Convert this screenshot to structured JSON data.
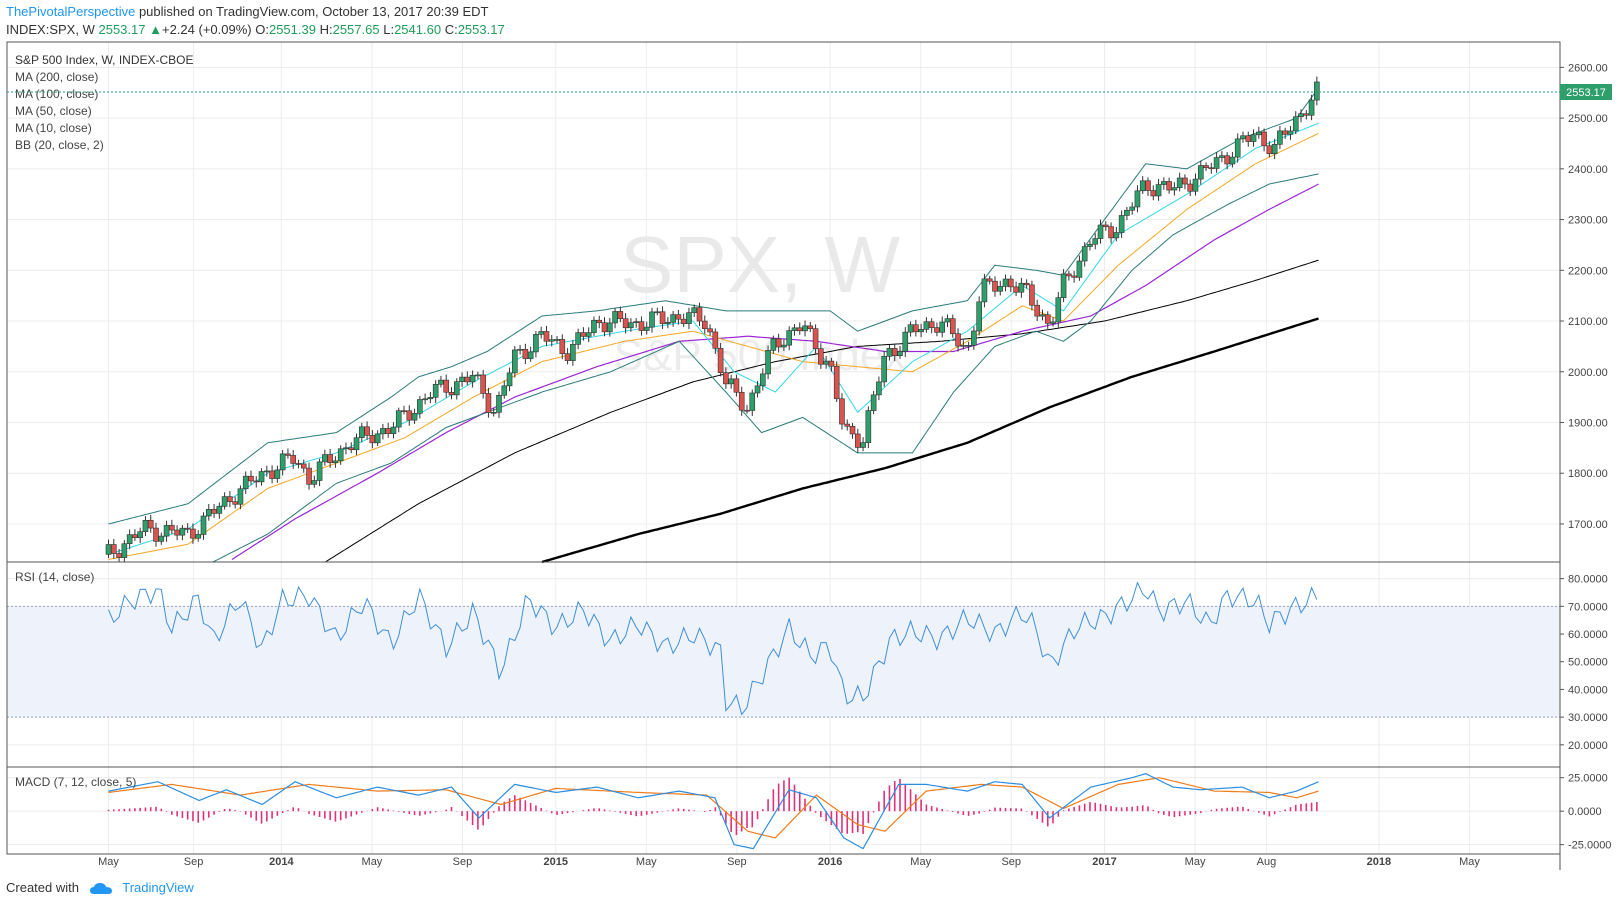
{
  "publication": {
    "author": "ThePivotalPerspective",
    "text": " published on TradingView.com, October 13, 2017 20:39 EDT"
  },
  "quote": {
    "symbol": "INDEX:SPX, W",
    "last": "2553.17",
    "change": "+2.24 (+0.09%)",
    "open_label": "O:",
    "open": "2551.39",
    "high_label": "H:",
    "high": "2557.65",
    "low_label": "L:",
    "low": "2541.60",
    "close_label": "C:",
    "close": "2553.17"
  },
  "legend": {
    "title": "S&P 500 Index, W, INDEX-CBOE",
    "ma200": "MA (200, close)",
    "ma100": "MA (100, close)",
    "ma50": "MA (50, close)",
    "ma10": "MA (10, close)",
    "bb": "BB (20, close, 2)",
    "rsi": "RSI (14, close)",
    "macd": "MACD (7, 12, close, 5)"
  },
  "watermark": {
    "main": "SPX, W",
    "sub": "S&P 500 Index"
  },
  "last_price_tag": "2553.17",
  "footer": {
    "created": "Created with",
    "brand": "TradingView"
  },
  "colors": {
    "up": "#2e9e6b",
    "down": "#d9534f",
    "bb": "#2a7a7a",
    "ma10": "#33d6e8",
    "ma50": "#f5a623",
    "ma100": "#9c27d6",
    "ma200": "#000000",
    "ma200_long": "#000000",
    "rsi": "#3f8fd6",
    "macd": "#2b8de0",
    "signal": "#f07b1a",
    "hist": "#e0307a"
  },
  "chart_data": [
    {
      "type": "candlestick",
      "panel": "price",
      "title": "S&P 500 Index, W, INDEX-CBOE",
      "x_labels": [
        "May",
        "Sep",
        "2014",
        "May",
        "Sep",
        "2015",
        "May",
        "Sep",
        "2016",
        "May",
        "Sep",
        "2017",
        "May",
        "Aug",
        "2018",
        "May"
      ],
      "y_ticks": [
        "1700.00",
        "1800.00",
        "1900.00",
        "2000.00",
        "2100.00",
        "2200.00",
        "2300.00",
        "2400.00",
        "2500.00",
        "2600.00"
      ],
      "ylim": [
        1625,
        2650
      ],
      "close_series": [
        [
          2013.37,
          1640
        ],
        [
          2013.5,
          1690
        ],
        [
          2013.66,
          1680
        ],
        [
          2013.83,
          1760
        ],
        [
          2013.95,
          1805
        ],
        [
          2014.05,
          1830
        ],
        [
          2014.1,
          1790
        ],
        [
          2014.25,
          1860
        ],
        [
          2014.4,
          1890
        ],
        [
          2014.55,
          1960
        ],
        [
          2014.7,
          1990
        ],
        [
          2014.78,
          1920
        ],
        [
          2014.85,
          2030
        ],
        [
          2014.95,
          2070
        ],
        [
          2015.05,
          2040
        ],
        [
          2015.15,
          2100
        ],
        [
          2015.3,
          2095
        ],
        [
          2015.45,
          2110
        ],
        [
          2015.55,
          2100
        ],
        [
          2015.62,
          1975
        ],
        [
          2015.7,
          1930
        ],
        [
          2015.8,
          2060
        ],
        [
          2015.9,
          2090
        ],
        [
          2016.0,
          2010
        ],
        [
          2016.05,
          1880
        ],
        [
          2016.12,
          1870
        ],
        [
          2016.2,
          2030
        ],
        [
          2016.3,
          2080
        ],
        [
          2016.4,
          2100
        ],
        [
          2016.5,
          2040
        ],
        [
          2016.55,
          2160
        ],
        [
          2016.65,
          2180
        ],
        [
          2016.72,
          2150
        ],
        [
          2016.8,
          2090
        ],
        [
          2016.85,
          2170
        ],
        [
          2016.95,
          2260
        ],
        [
          2017.05,
          2290
        ],
        [
          2017.15,
          2370
        ],
        [
          2017.25,
          2360
        ],
        [
          2017.35,
          2390
        ],
        [
          2017.45,
          2430
        ],
        [
          2017.55,
          2470
        ],
        [
          2017.62,
          2440
        ],
        [
          2017.7,
          2500
        ],
        [
          2017.78,
          2553
        ]
      ],
      "bb_upper": [
        [
          2013.37,
          1700
        ],
        [
          2013.66,
          1740
        ],
        [
          2013.95,
          1860
        ],
        [
          2014.2,
          1880
        ],
        [
          2014.4,
          1950
        ],
        [
          2014.5,
          1990
        ],
        [
          2014.62,
          2010
        ],
        [
          2014.75,
          2040
        ],
        [
          2014.95,
          2110
        ],
        [
          2015.15,
          2120
        ],
        [
          2015.4,
          2140
        ],
        [
          2015.62,
          2120
        ],
        [
          2015.8,
          2120
        ],
        [
          2016.0,
          2120
        ],
        [
          2016.1,
          2080
        ],
        [
          2016.3,
          2120
        ],
        [
          2016.5,
          2140
        ],
        [
          2016.6,
          2210
        ],
        [
          2016.75,
          2200
        ],
        [
          2016.85,
          2190
        ],
        [
          2017.0,
          2300
        ],
        [
          2017.15,
          2410
        ],
        [
          2017.3,
          2400
        ],
        [
          2017.5,
          2460
        ],
        [
          2017.7,
          2500
        ],
        [
          2017.78,
          2560
        ]
      ],
      "bb_lower": [
        [
          2013.37,
          1570
        ],
        [
          2013.66,
          1600
        ],
        [
          2013.95,
          1680
        ],
        [
          2014.2,
          1780
        ],
        [
          2014.4,
          1820
        ],
        [
          2014.6,
          1890
        ],
        [
          2014.75,
          1920
        ],
        [
          2014.95,
          1960
        ],
        [
          2015.2,
          2000
        ],
        [
          2015.45,
          2060
        ],
        [
          2015.62,
          1960
        ],
        [
          2015.75,
          1880
        ],
        [
          2015.9,
          1910
        ],
        [
          2016.1,
          1840
        ],
        [
          2016.3,
          1840
        ],
        [
          2016.45,
          1960
        ],
        [
          2016.6,
          2050
        ],
        [
          2016.75,
          2080
        ],
        [
          2016.85,
          2060
        ],
        [
          2016.95,
          2100
        ],
        [
          2017.1,
          2200
        ],
        [
          2017.25,
          2270
        ],
        [
          2017.45,
          2330
        ],
        [
          2017.6,
          2370
        ],
        [
          2017.78,
          2390
        ]
      ],
      "ma10": [
        [
          2013.37,
          1640
        ],
        [
          2013.66,
          1690
        ],
        [
          2013.95,
          1800
        ],
        [
          2014.2,
          1840
        ],
        [
          2014.45,
          1900
        ],
        [
          2014.7,
          1980
        ],
        [
          2014.95,
          2050
        ],
        [
          2015.25,
          2080
        ],
        [
          2015.5,
          2100
        ],
        [
          2015.65,
          2000
        ],
        [
          2015.8,
          1960
        ],
        [
          2015.95,
          2050
        ],
        [
          2016.1,
          1920
        ],
        [
          2016.3,
          2020
        ],
        [
          2016.5,
          2080
        ],
        [
          2016.7,
          2170
        ],
        [
          2016.85,
          2120
        ],
        [
          2017.05,
          2270
        ],
        [
          2017.3,
          2350
        ],
        [
          2017.55,
          2440
        ],
        [
          2017.78,
          2490
        ]
      ],
      "ma50": [
        [
          2013.37,
          1630
        ],
        [
          2013.66,
          1660
        ],
        [
          2013.95,
          1770
        ],
        [
          2014.2,
          1820
        ],
        [
          2014.45,
          1870
        ],
        [
          2014.7,
          1950
        ],
        [
          2014.95,
          2020
        ],
        [
          2015.25,
          2060
        ],
        [
          2015.5,
          2080
        ],
        [
          2015.7,
          2050
        ],
        [
          2015.9,
          2020
        ],
        [
          2016.1,
          2010
        ],
        [
          2016.3,
          2000
        ],
        [
          2016.5,
          2060
        ],
        [
          2016.7,
          2130
        ],
        [
          2016.85,
          2100
        ],
        [
          2017.05,
          2210
        ],
        [
          2017.3,
          2320
        ],
        [
          2017.55,
          2410
        ],
        [
          2017.78,
          2470
        ]
      ],
      "ma100": [
        [
          2013.82,
          1630
        ],
        [
          2014.05,
          1710
        ],
        [
          2014.35,
          1800
        ],
        [
          2014.6,
          1880
        ],
        [
          2014.85,
          1950
        ],
        [
          2015.15,
          2010
        ],
        [
          2015.45,
          2060
        ],
        [
          2015.7,
          2070
        ],
        [
          2015.95,
          2060
        ],
        [
          2016.2,
          2040
        ],
        [
          2016.45,
          2040
        ],
        [
          2016.7,
          2080
        ],
        [
          2016.95,
          2110
        ],
        [
          2017.15,
          2170
        ],
        [
          2017.4,
          2260
        ],
        [
          2017.6,
          2320
        ],
        [
          2017.78,
          2370
        ]
      ],
      "ma200": [
        [
          2014.16,
          1625
        ],
        [
          2014.5,
          1740
        ],
        [
          2014.85,
          1840
        ],
        [
          2015.2,
          1920
        ],
        [
          2015.5,
          1980
        ],
        [
          2015.8,
          2020
        ],
        [
          2016.1,
          2050
        ],
        [
          2016.4,
          2060
        ],
        [
          2016.7,
          2075
        ],
        [
          2017.0,
          2100
        ],
        [
          2017.3,
          2140
        ],
        [
          2017.55,
          2180
        ],
        [
          2017.78,
          2220
        ]
      ],
      "ma_long": [
        [
          2014.95,
          1625
        ],
        [
          2015.3,
          1680
        ],
        [
          2015.6,
          1720
        ],
        [
          2015.9,
          1770
        ],
        [
          2016.2,
          1810
        ],
        [
          2016.5,
          1860
        ],
        [
          2016.8,
          1930
        ],
        [
          2017.1,
          1990
        ],
        [
          2017.4,
          2040
        ],
        [
          2017.78,
          2105
        ]
      ]
    },
    {
      "type": "line",
      "panel": "rsi",
      "title": "RSI (14, close)",
      "y_ticks": [
        "20.0000",
        "30.0000",
        "40.0000",
        "50.0000",
        "60.0000",
        "70.0000",
        "80.0000"
      ],
      "ylim": [
        12,
        86
      ],
      "band": [
        30,
        70
      ],
      "values": [
        [
          2013.37,
          65
        ],
        [
          2013.45,
          72
        ],
        [
          2013.55,
          76
        ],
        [
          2013.6,
          62
        ],
        [
          2013.7,
          73
        ],
        [
          2013.75,
          57
        ],
        [
          2013.85,
          73
        ],
        [
          2013.93,
          54
        ],
        [
          2014.0,
          72
        ],
        [
          2014.1,
          74
        ],
        [
          2014.2,
          58
        ],
        [
          2014.3,
          72
        ],
        [
          2014.4,
          56
        ],
        [
          2014.5,
          74
        ],
        [
          2014.6,
          55
        ],
        [
          2014.7,
          68
        ],
        [
          2014.8,
          46
        ],
        [
          2014.9,
          73
        ],
        [
          2015.0,
          62
        ],
        [
          2015.1,
          69
        ],
        [
          2015.2,
          57
        ],
        [
          2015.3,
          64
        ],
        [
          2015.4,
          55
        ],
        [
          2015.5,
          60
        ],
        [
          2015.6,
          54
        ],
        [
          2015.62,
          36
        ],
        [
          2015.68,
          33
        ],
        [
          2015.75,
          45
        ],
        [
          2015.85,
          62
        ],
        [
          2015.93,
          52
        ],
        [
          2016.0,
          56
        ],
        [
          2016.05,
          38
        ],
        [
          2016.12,
          37
        ],
        [
          2016.22,
          58
        ],
        [
          2016.3,
          61
        ],
        [
          2016.4,
          58
        ],
        [
          2016.5,
          66
        ],
        [
          2016.6,
          60
        ],
        [
          2016.7,
          68
        ],
        [
          2016.75,
          62
        ],
        [
          2016.8,
          48
        ],
        [
          2016.9,
          63
        ],
        [
          2017.0,
          66
        ],
        [
          2017.1,
          73
        ],
        [
          2017.15,
          77
        ],
        [
          2017.2,
          68
        ],
        [
          2017.3,
          72
        ],
        [
          2017.38,
          63
        ],
        [
          2017.45,
          74
        ],
        [
          2017.55,
          72
        ],
        [
          2017.6,
          64
        ],
        [
          2017.7,
          70
        ],
        [
          2017.78,
          74
        ]
      ]
    },
    {
      "type": "line",
      "panel": "macd",
      "title": "MACD (7, 12, close, 5)",
      "y_ticks": [
        "-25.0000",
        "0.0000",
        "25.0000"
      ],
      "ylim": [
        -32,
        33
      ],
      "macd": [
        [
          2013.37,
          15
        ],
        [
          2013.55,
          22
        ],
        [
          2013.7,
          8
        ],
        [
          2013.8,
          16
        ],
        [
          2013.93,
          5
        ],
        [
          2014.05,
          22
        ],
        [
          2014.2,
          10
        ],
        [
          2014.35,
          18
        ],
        [
          2014.5,
          12
        ],
        [
          2014.62,
          18
        ],
        [
          2014.72,
          -5
        ],
        [
          2014.85,
          20
        ],
        [
          2015.0,
          14
        ],
        [
          2015.15,
          18
        ],
        [
          2015.3,
          10
        ],
        [
          2015.45,
          15
        ],
        [
          2015.58,
          10
        ],
        [
          2015.65,
          -25
        ],
        [
          2015.72,
          -28
        ],
        [
          2015.85,
          16
        ],
        [
          2015.95,
          10
        ],
        [
          2016.05,
          -20
        ],
        [
          2016.12,
          -28
        ],
        [
          2016.25,
          20
        ],
        [
          2016.35,
          20
        ],
        [
          2016.5,
          15
        ],
        [
          2016.6,
          22
        ],
        [
          2016.7,
          20
        ],
        [
          2016.8,
          -5
        ],
        [
          2016.95,
          18
        ],
        [
          2017.1,
          25
        ],
        [
          2017.15,
          28
        ],
        [
          2017.25,
          18
        ],
        [
          2017.35,
          16
        ],
        [
          2017.5,
          18
        ],
        [
          2017.6,
          10
        ],
        [
          2017.7,
          15
        ],
        [
          2017.78,
          22
        ]
      ],
      "signal": [
        [
          2013.37,
          14
        ],
        [
          2013.6,
          20
        ],
        [
          2013.85,
          12
        ],
        [
          2014.1,
          20
        ],
        [
          2014.35,
          15
        ],
        [
          2014.6,
          16
        ],
        [
          2014.8,
          5
        ],
        [
          2015.0,
          17
        ],
        [
          2015.3,
          14
        ],
        [
          2015.55,
          12
        ],
        [
          2015.7,
          -15
        ],
        [
          2015.8,
          -20
        ],
        [
          2015.95,
          12
        ],
        [
          2016.1,
          -10
        ],
        [
          2016.2,
          -15
        ],
        [
          2016.35,
          15
        ],
        [
          2016.55,
          20
        ],
        [
          2016.7,
          18
        ],
        [
          2016.85,
          2
        ],
        [
          2017.05,
          20
        ],
        [
          2017.2,
          25
        ],
        [
          2017.4,
          15
        ],
        [
          2017.6,
          14
        ],
        [
          2017.7,
          10
        ],
        [
          2017.78,
          15
        ]
      ]
    }
  ]
}
